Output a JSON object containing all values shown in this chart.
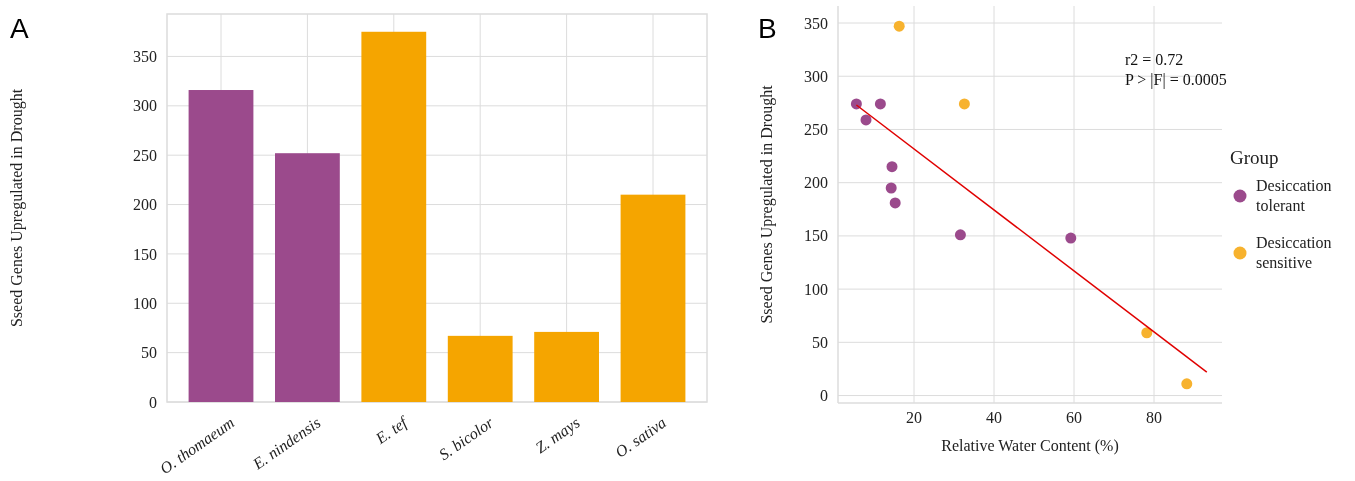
{
  "chart_data": [
    {
      "type": "bar",
      "title": "A",
      "categories": [
        "O. thomaeum",
        "E. nindensis",
        "E. tef",
        "S. bicolor",
        "Z. mays",
        "O. sativa"
      ],
      "values": [
        316,
        252,
        375,
        67,
        71,
        210
      ],
      "colors": [
        "#9b4a8c",
        "#9b4a8c",
        "#f5a500",
        "#f5a500",
        "#f5a500",
        "#f5a500"
      ],
      "ylabel": "Sseed Genes Upregulated in Drought",
      "ylim": [
        0,
        393
      ],
      "yticks": [
        0,
        50,
        100,
        150,
        200,
        250,
        300,
        350
      ],
      "grid": true
    },
    {
      "type": "scatter",
      "title": "B",
      "xlabel": "Relative Water Content (%)",
      "ylabel": "Sseed Genes Upregulated in Drought",
      "xlim": [
        1,
        97
      ],
      "xticks": [
        20,
        40,
        60,
        80
      ],
      "ylim": [
        -7,
        366
      ],
      "yticks": [
        0,
        50,
        100,
        150,
        200,
        250,
        300,
        350
      ],
      "grid": true,
      "legend": "right",
      "legend_title": "Group",
      "marker": "circle",
      "annotations": [
        "r2 = 0.72",
        "P > |F| = 0.0005"
      ],
      "series": [
        {
          "name": "Desiccation tolerant",
          "color": "#9b4a8c",
          "x": [
            5.6,
            11.6,
            8.0,
            14.5,
            14.3,
            15.3,
            31.6,
            59.2
          ],
          "values": [
            274,
            274,
            259,
            215,
            195,
            181,
            151,
            148
          ]
        },
        {
          "name": "Desiccation sensitive",
          "color": "#f7b22e",
          "x": [
            16.3,
            32.6,
            78.2,
            88.2
          ],
          "values": [
            347,
            274,
            59,
            11
          ]
        },
        {
          "type": "line",
          "color": "#e00000",
          "marker": "none",
          "x": [
            5.6,
            93.2
          ],
          "values": [
            273,
            22
          ]
        }
      ]
    }
  ]
}
